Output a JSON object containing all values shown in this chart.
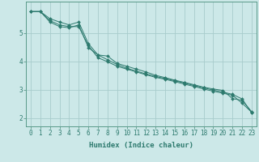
{
  "xlabel": "Humidex (Indice chaleur)",
  "bg_color": "#cce8e8",
  "grid_color": "#a8cccc",
  "line_color": "#2d7a6e",
  "spine_color": "#5a9a8a",
  "xlim": [
    -0.5,
    23.5
  ],
  "ylim": [
    1.7,
    6.1
  ],
  "x": [
    0,
    1,
    2,
    3,
    4,
    5,
    6,
    7,
    8,
    9,
    10,
    11,
    12,
    13,
    14,
    15,
    16,
    17,
    18,
    19,
    20,
    21,
    22,
    23
  ],
  "line1": [
    5.75,
    5.75,
    5.5,
    5.38,
    5.28,
    5.38,
    4.62,
    4.22,
    4.18,
    3.92,
    3.82,
    3.72,
    3.62,
    3.5,
    3.42,
    3.33,
    3.25,
    3.17,
    3.08,
    3.02,
    2.97,
    2.68,
    2.62,
    2.22
  ],
  "line2": [
    5.75,
    5.75,
    5.43,
    5.28,
    5.22,
    5.22,
    4.55,
    4.12,
    3.98,
    3.82,
    3.72,
    3.62,
    3.52,
    3.43,
    3.36,
    3.28,
    3.19,
    3.11,
    3.02,
    2.94,
    2.87,
    2.8,
    2.52,
    2.2
  ],
  "line3": [
    5.75,
    5.75,
    5.38,
    5.22,
    5.18,
    5.28,
    4.48,
    4.22,
    4.05,
    3.88,
    3.75,
    3.65,
    3.55,
    3.46,
    3.39,
    3.31,
    3.23,
    3.14,
    3.06,
    2.98,
    2.91,
    2.83,
    2.67,
    2.18
  ],
  "yticks": [
    2,
    3,
    4,
    5
  ],
  "xticks": [
    0,
    1,
    2,
    3,
    4,
    5,
    6,
    7,
    8,
    9,
    10,
    11,
    12,
    13,
    14,
    15,
    16,
    17,
    18,
    19,
    20,
    21,
    22,
    23
  ],
  "tick_fontsize": 5.5,
  "xlabel_fontsize": 6.5,
  "ylabel_fontsize": 6
}
